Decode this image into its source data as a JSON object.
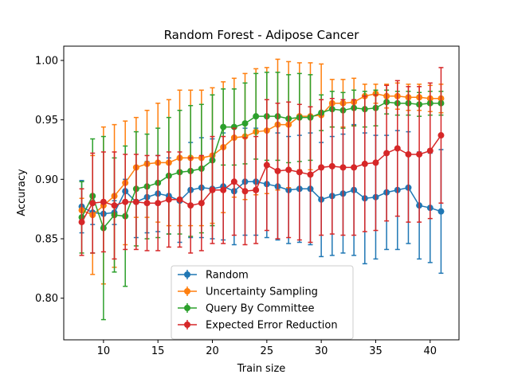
{
  "chart_data": {
    "type": "line",
    "title": "Random Forest - Adipose Cancer",
    "xlabel": "Train size",
    "ylabel": "Accuracy",
    "xlim": [
      6.35,
      42.65
    ],
    "ylim": [
      0.765,
      1.012
    ],
    "xticks": [
      10,
      15,
      20,
      25,
      30,
      35,
      40
    ],
    "yticks": [
      0.8,
      0.85,
      0.9,
      0.95,
      1.0
    ],
    "xtick_labels": [
      "10",
      "15",
      "20",
      "25",
      "30",
      "35",
      "40"
    ],
    "ytick_labels": [
      "0.80",
      "0.85",
      "0.90",
      "0.95",
      "1.00"
    ],
    "grid": false,
    "legend_position": "lower center",
    "error_bars": true,
    "x": [
      8,
      9,
      10,
      11,
      12,
      13,
      14,
      15,
      16,
      17,
      18,
      19,
      20,
      21,
      22,
      23,
      24,
      25,
      26,
      27,
      28,
      29,
      30,
      31,
      32,
      33,
      34,
      35,
      36,
      37,
      38,
      39,
      40,
      41
    ],
    "series": [
      {
        "name": "Random",
        "color": "#1f77b4",
        "values": [
          0.877,
          0.872,
          0.871,
          0.872,
          0.89,
          0.881,
          0.885,
          0.888,
          0.886,
          0.882,
          0.891,
          0.893,
          0.892,
          0.894,
          0.89,
          0.898,
          0.898,
          0.896,
          0.894,
          0.891,
          0.892,
          0.892,
          0.883,
          0.886,
          0.888,
          0.891,
          0.884,
          0.885,
          0.889,
          0.891,
          0.893,
          0.878,
          0.876,
          0.873
        ],
        "errors": [
          0.022,
          0.01,
          0.01,
          0.01,
          0.01,
          0.03,
          0.03,
          0.032,
          0.032,
          0.035,
          0.04,
          0.042,
          0.042,
          0.045,
          0.045,
          0.045,
          0.045,
          0.045,
          0.045,
          0.045,
          0.045,
          0.047,
          0.048,
          0.05,
          0.05,
          0.055,
          0.055,
          0.052,
          0.048,
          0.05,
          0.047,
          0.045,
          0.046,
          0.052
        ]
      },
      {
        "name": "Uncertainty Sampling",
        "color": "#ff7f0e",
        "values": [
          0.874,
          0.87,
          0.878,
          0.886,
          0.897,
          0.91,
          0.913,
          0.914,
          0.914,
          0.918,
          0.918,
          0.918,
          0.92,
          0.927,
          0.935,
          0.936,
          0.94,
          0.941,
          0.946,
          0.946,
          0.953,
          0.953,
          0.954,
          0.964,
          0.964,
          0.965,
          0.97,
          0.972,
          0.97,
          0.97,
          0.969,
          0.969,
          0.968,
          0.968
        ],
        "errors": [
          0.01,
          0.05,
          0.066,
          0.06,
          0.052,
          0.042,
          0.045,
          0.05,
          0.053,
          0.057,
          0.057,
          0.057,
          0.057,
          0.055,
          0.05,
          0.053,
          0.053,
          0.053,
          0.055,
          0.053,
          0.045,
          0.045,
          0.043,
          0.02,
          0.02,
          0.02,
          0.01,
          0.008,
          0.01,
          0.011,
          0.011,
          0.011,
          0.011,
          0.012
        ]
      },
      {
        "name": "Query By Committee",
        "color": "#2ca02c",
        "values": [
          0.868,
          0.886,
          0.859,
          0.87,
          0.869,
          0.892,
          0.894,
          0.897,
          0.903,
          0.906,
          0.907,
          0.909,
          0.916,
          0.944,
          0.944,
          0.947,
          0.953,
          0.953,
          0.953,
          0.951,
          0.952,
          0.952,
          0.956,
          0.959,
          0.958,
          0.96,
          0.959,
          0.96,
          0.965,
          0.964,
          0.964,
          0.963,
          0.964,
          0.964
        ],
        "errors": [
          0.03,
          0.048,
          0.077,
          0.048,
          0.059,
          0.048,
          0.044,
          0.046,
          0.049,
          0.052,
          0.055,
          0.054,
          0.055,
          0.032,
          0.032,
          0.034,
          0.036,
          0.037,
          0.037,
          0.037,
          0.037,
          0.036,
          0.015,
          0.015,
          0.015,
          0.015,
          0.015,
          0.015,
          0.01,
          0.01,
          0.01,
          0.01,
          0.01,
          0.01
        ]
      },
      {
        "name": "Expected Error Reduction",
        "color": "#d62728",
        "values": [
          0.864,
          0.88,
          0.881,
          0.878,
          0.881,
          0.881,
          0.88,
          0.88,
          0.883,
          0.883,
          0.878,
          0.88,
          0.891,
          0.891,
          0.898,
          0.89,
          0.891,
          0.912,
          0.907,
          0.908,
          0.906,
          0.904,
          0.91,
          0.911,
          0.91,
          0.91,
          0.913,
          0.914,
          0.922,
          0.926,
          0.921,
          0.921,
          0.924,
          0.937
        ],
        "errors": [
          0.028,
          0.042,
          0.042,
          0.045,
          0.04,
          0.04,
          0.04,
          0.04,
          0.04,
          0.04,
          0.04,
          0.04,
          0.045,
          0.045,
          0.045,
          0.045,
          0.045,
          0.055,
          0.057,
          0.057,
          0.057,
          0.057,
          0.057,
          0.057,
          0.057,
          0.057,
          0.057,
          0.057,
          0.057,
          0.057,
          0.057,
          0.057,
          0.057,
          0.057
        ]
      }
    ]
  }
}
